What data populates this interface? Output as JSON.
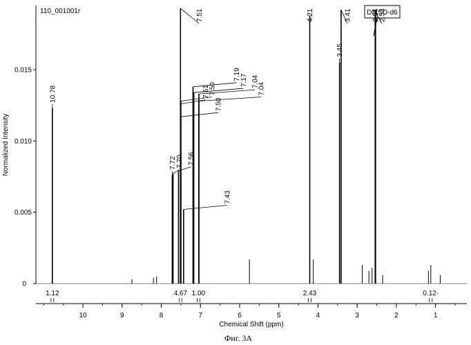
{
  "chart_data": {
    "type": "line",
    "title": "110_001001r",
    "solvent_box": "DMSO-d6",
    "xlabel": "Chemical Shift (ppm)",
    "ylabel": "Normalized Intensity",
    "xlim": [
      11.2,
      0.2
    ],
    "ylim": [
      0,
      0.0195
    ],
    "x_ticks": [
      "10",
      "9",
      "8",
      "7",
      "6",
      "5",
      "4",
      "3",
      "2",
      "1"
    ],
    "y_ticks": [
      {
        "value": 0,
        "label": "0"
      },
      {
        "value": 0.005,
        "label": "0.005"
      },
      {
        "value": 0.01,
        "label": "0.010"
      },
      {
        "value": 0.015,
        "label": "0.015"
      }
    ],
    "peaks": [
      {
        "ppm": 10.78,
        "intensity": 0.0123,
        "label": "10.78"
      },
      {
        "ppm": 7.72,
        "intensity": 0.0076,
        "label": "7.72"
      },
      {
        "ppm": 7.7,
        "intensity": 0.0077,
        "label": "7.70"
      },
      {
        "ppm": 7.56,
        "intensity": 0.0079,
        "label": "7.56"
      },
      {
        "ppm": 7.51,
        "intensity": 0.0193,
        "label": "7.51"
      },
      {
        "ppm": 7.51,
        "intensity": 0.0126,
        "label": "7.51"
      },
      {
        "ppm": 7.5,
        "intensity": 0.0128,
        "label": "7.50"
      },
      {
        "ppm": 7.5,
        "intensity": 0.0117,
        "label": "7.50"
      },
      {
        "ppm": 7.43,
        "intensity": 0.0052,
        "label": "7.43"
      },
      {
        "ppm": 7.19,
        "intensity": 0.0138,
        "label": "7.19"
      },
      {
        "ppm": 7.17,
        "intensity": 0.0134,
        "label": "7.17"
      },
      {
        "ppm": 7.04,
        "intensity": 0.0133,
        "label": "7.04"
      },
      {
        "ppm": 7.04,
        "intensity": 0.0128,
        "label": "7.04"
      },
      {
        "ppm": 4.21,
        "intensity": 0.0188,
        "label": "4.21"
      },
      {
        "ppm": 3.45,
        "intensity": 0.0155,
        "label": "3.45"
      },
      {
        "ppm": 3.41,
        "intensity": 0.0192,
        "label": "3.41"
      },
      {
        "ppm": 2.54,
        "intensity": 0.0192,
        "label": "2.54"
      },
      {
        "ppm": 2.53,
        "intensity": 0.019,
        "label": "2.53"
      }
    ],
    "minor_peaks": [
      {
        "ppm": 8.75,
        "intensity": 0.0003
      },
      {
        "ppm": 8.2,
        "intensity": 0.0004
      },
      {
        "ppm": 8.12,
        "intensity": 0.0005
      },
      {
        "ppm": 5.75,
        "intensity": 0.0017
      },
      {
        "ppm": 4.12,
        "intensity": 0.0017
      },
      {
        "ppm": 2.87,
        "intensity": 0.0013
      },
      {
        "ppm": 2.7,
        "intensity": 0.0009
      },
      {
        "ppm": 2.62,
        "intensity": 0.0011
      },
      {
        "ppm": 2.35,
        "intensity": 0.0006
      },
      {
        "ppm": 1.18,
        "intensity": 0.0009
      },
      {
        "ppm": 1.12,
        "intensity": 0.0013
      },
      {
        "ppm": 0.88,
        "intensity": 0.0006
      }
    ],
    "integrals": [
      {
        "ppm": 10.78,
        "label": "1.12"
      },
      {
        "ppm": 7.51,
        "label": "4.67"
      },
      {
        "ppm": 7.05,
        "label": "1.00"
      },
      {
        "ppm": 4.21,
        "label": "2.43"
      },
      {
        "ppm": 1.12,
        "label": "0.12-"
      }
    ]
  },
  "caption": "Фиг. 3A"
}
